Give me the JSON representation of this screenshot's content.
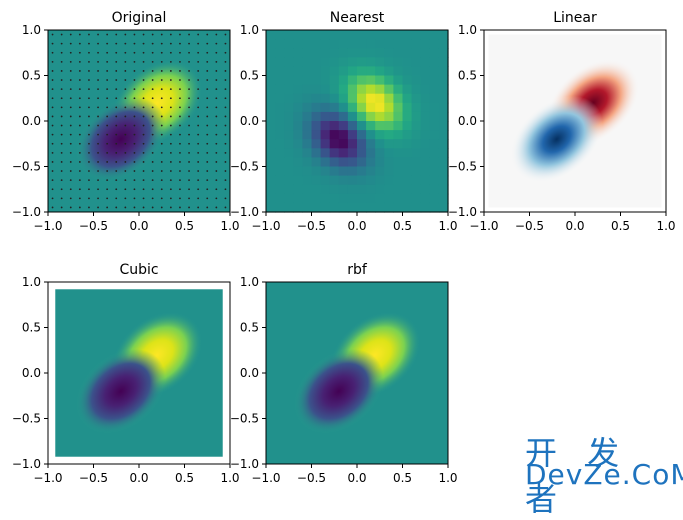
{
  "chart_data": [
    {
      "type": "heatmap",
      "title": "Original",
      "colormap": "viridis",
      "xlim": [
        -1.0,
        1.0
      ],
      "ylim": [
        -1.0,
        1.0
      ],
      "xticks": [
        "−1.0",
        "−0.5",
        "0.0",
        "0.5",
        "1.0"
      ],
      "yticks": [
        "−1.0",
        "−0.5",
        "0.0",
        "0.5",
        "1.0"
      ],
      "grid_points_shown": true,
      "peak": {
        "x": 0.2,
        "y": 0.2
      },
      "trough": {
        "x": -0.2,
        "y": -0.2
      }
    },
    {
      "type": "heatmap",
      "title": "Nearest",
      "colormap": "viridis",
      "xlim": [
        -1.0,
        1.0
      ],
      "ylim": [
        -1.0,
        1.0
      ],
      "xticks": [
        "−1.0",
        "−0.5",
        "0.0",
        "0.5",
        "1.0"
      ],
      "yticks": [
        "−1.0",
        "−0.5",
        "0.0",
        "0.5",
        "1.0"
      ],
      "pixelated": true,
      "peak": {
        "x": 0.2,
        "y": 0.2
      },
      "trough": {
        "x": -0.2,
        "y": -0.2
      }
    },
    {
      "type": "heatmap",
      "title": "Linear",
      "colormap": "RdBu",
      "xlim": [
        -1.0,
        1.0
      ],
      "ylim": [
        -1.0,
        1.0
      ],
      "xticks": [
        "−1.0",
        "−0.5",
        "0.0",
        "0.5",
        "1.0"
      ],
      "yticks": [
        "−1.0",
        "−0.5",
        "0.0",
        "0.5",
        "1.0"
      ],
      "peak": {
        "x": 0.2,
        "y": 0.2
      },
      "trough": {
        "x": -0.2,
        "y": -0.2
      }
    },
    {
      "type": "heatmap",
      "title": "Cubic",
      "colormap": "viridis",
      "xlim": [
        -1.0,
        1.0
      ],
      "ylim": [
        -1.0,
        1.0
      ],
      "xticks": [
        "−1.0",
        "−0.5",
        "0.0",
        "0.5",
        "1.0"
      ],
      "yticks": [
        "−1.0",
        "−0.5",
        "0.0",
        "0.5",
        "1.0"
      ],
      "peak": {
        "x": 0.2,
        "y": 0.2
      },
      "trough": {
        "x": -0.2,
        "y": -0.2
      }
    },
    {
      "type": "heatmap",
      "title": "rbf",
      "colormap": "viridis",
      "xlim": [
        -1.0,
        1.0
      ],
      "ylim": [
        -1.0,
        1.0
      ],
      "xticks": [
        "−1.0",
        "−0.5",
        "0.0",
        "0.5",
        "1.0"
      ],
      "yticks": [
        "−1.0",
        "−0.5",
        "0.0",
        "0.5",
        "1.0"
      ],
      "peak": {
        "x": 0.2,
        "y": 0.2
      },
      "trough": {
        "x": -0.2,
        "y": -0.2
      }
    }
  ],
  "watermark": {
    "cn": "开 发 者",
    "en": "DevZe.CoM"
  }
}
